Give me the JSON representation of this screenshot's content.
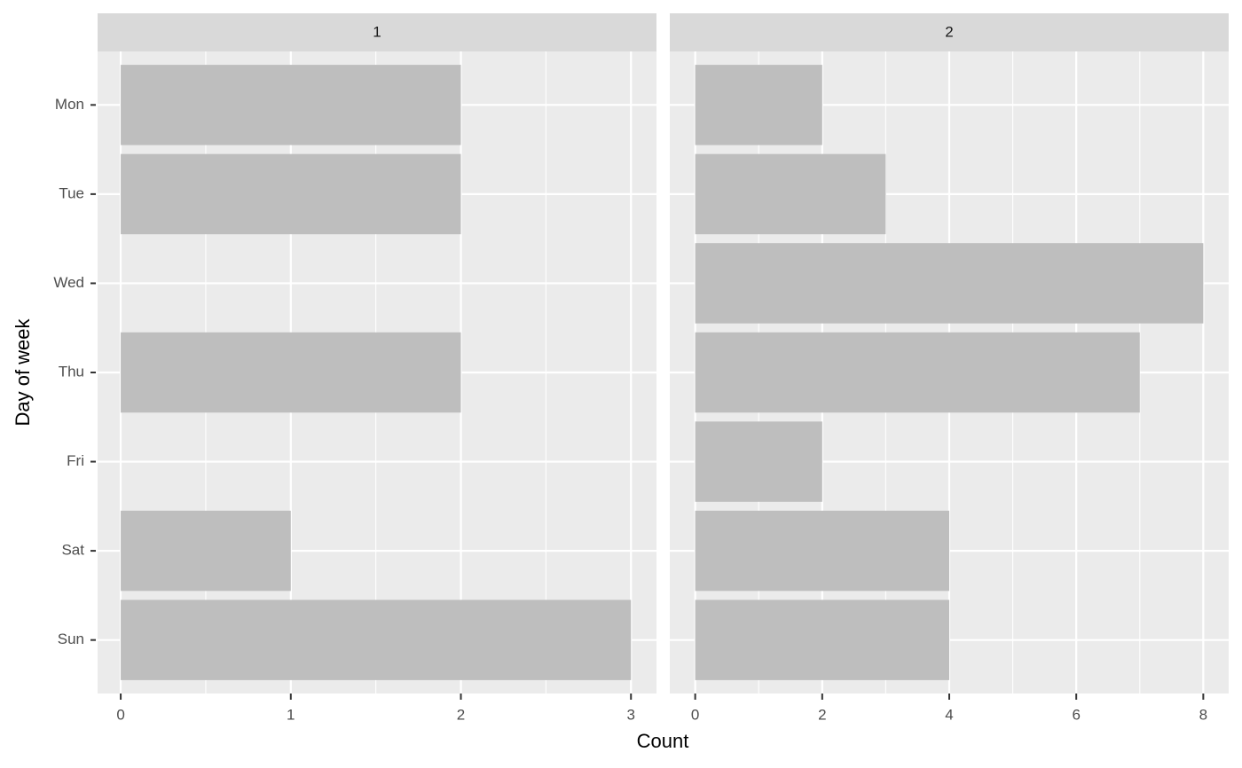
{
  "chart_data": {
    "type": "bar",
    "orientation": "horizontal",
    "xlabel": "Count",
    "ylabel": "Day of week",
    "categories": [
      "Mon",
      "Tue",
      "Wed",
      "Thu",
      "Fri",
      "Sat",
      "Sun"
    ],
    "color": "#bebebe",
    "grid": true,
    "panels": [
      {
        "title": "1",
        "values": [
          2,
          2,
          0,
          2,
          0,
          1,
          3
        ],
        "xlim": [
          -0.136,
          3.15
        ],
        "xticks": [
          0,
          1,
          2,
          3
        ]
      },
      {
        "title": "2",
        "values": [
          2,
          3,
          8,
          7,
          2,
          4,
          4
        ],
        "xlim": [
          -0.4,
          8.4
        ],
        "xticks": [
          0,
          2,
          4,
          6,
          8
        ]
      }
    ]
  }
}
